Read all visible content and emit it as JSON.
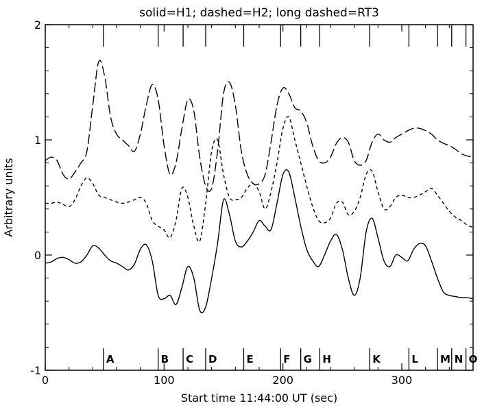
{
  "chart_data": {
    "type": "line",
    "title": "solid=H1; dashed=H2; long dashed=RT3",
    "xlabel": "Start time 11:44:00 UT (sec)",
    "ylabel": "Arbitrary units",
    "xlim": [
      0,
      360
    ],
    "ylim": [
      -1,
      2
    ],
    "xticks": [
      0,
      100,
      200,
      300
    ],
    "yticks": [
      -1,
      0,
      1,
      2
    ],
    "grid": false,
    "markers": [
      {
        "label": "A",
        "x": 49
      },
      {
        "label": "B",
        "x": 95
      },
      {
        "label": "C",
        "x": 116
      },
      {
        "label": "D",
        "x": 135
      },
      {
        "label": "E",
        "x": 167
      },
      {
        "label": "F",
        "x": 198
      },
      {
        "label": "G",
        "x": 215
      },
      {
        "label": "H",
        "x": 231
      },
      {
        "label": "K",
        "x": 273
      },
      {
        "label": "L",
        "x": 306
      },
      {
        "label": "M",
        "x": 330
      },
      {
        "label": "N",
        "x": 342
      },
      {
        "label": "O",
        "x": 354
      }
    ],
    "series": [
      {
        "name": "H1",
        "style": "solid",
        "x": [
          0,
          5,
          10,
          15,
          20,
          25,
          30,
          35,
          40,
          45,
          50,
          55,
          60,
          65,
          70,
          75,
          80,
          85,
          90,
          95,
          100,
          105,
          110,
          115,
          120,
          125,
          130,
          135,
          140,
          145,
          150,
          155,
          160,
          165,
          170,
          175,
          180,
          185,
          190,
          195,
          200,
          205,
          210,
          215,
          220,
          225,
          230,
          235,
          240,
          245,
          250,
          255,
          260,
          265,
          270,
          275,
          280,
          285,
          290,
          295,
          300,
          305,
          310,
          315,
          320,
          325,
          330,
          335,
          340,
          345,
          350,
          355,
          360
        ],
        "y": [
          -0.07,
          -0.06,
          -0.03,
          -0.02,
          -0.04,
          -0.07,
          -0.06,
          0.0,
          0.08,
          0.06,
          0.0,
          -0.05,
          -0.07,
          -0.1,
          -0.13,
          -0.08,
          0.05,
          0.09,
          -0.05,
          -0.35,
          -0.38,
          -0.35,
          -0.43,
          -0.28,
          -0.1,
          -0.2,
          -0.48,
          -0.45,
          -0.2,
          0.1,
          0.48,
          0.35,
          0.12,
          0.07,
          0.12,
          0.2,
          0.3,
          0.25,
          0.22,
          0.45,
          0.7,
          0.72,
          0.5,
          0.25,
          0.05,
          -0.05,
          -0.1,
          0.0,
          0.12,
          0.18,
          0.05,
          -0.2,
          -0.35,
          -0.2,
          0.2,
          0.32,
          0.15,
          -0.05,
          -0.1,
          0.0,
          -0.02,
          -0.05,
          0.05,
          0.1,
          0.08,
          -0.05,
          -0.2,
          -0.32,
          -0.35,
          -0.36,
          -0.37,
          -0.37,
          -0.38
        ]
      },
      {
        "name": "H2",
        "style": "dashed",
        "x": [
          0,
          5,
          10,
          15,
          20,
          25,
          30,
          35,
          40,
          45,
          50,
          55,
          60,
          65,
          70,
          75,
          80,
          85,
          90,
          95,
          100,
          105,
          110,
          115,
          120,
          125,
          130,
          135,
          140,
          145,
          150,
          155,
          160,
          165,
          170,
          175,
          180,
          185,
          190,
          195,
          200,
          205,
          210,
          215,
          220,
          225,
          230,
          235,
          240,
          245,
          250,
          255,
          260,
          265,
          270,
          275,
          280,
          285,
          290,
          295,
          300,
          305,
          310,
          315,
          320,
          325,
          330,
          335,
          340,
          345,
          350,
          355,
          360
        ],
        "y": [
          0.45,
          0.45,
          0.46,
          0.44,
          0.42,
          0.48,
          0.6,
          0.67,
          0.62,
          0.52,
          0.5,
          0.48,
          0.46,
          0.45,
          0.46,
          0.48,
          0.5,
          0.45,
          0.3,
          0.25,
          0.22,
          0.15,
          0.3,
          0.58,
          0.5,
          0.25,
          0.12,
          0.45,
          0.9,
          1.0,
          0.7,
          0.5,
          0.48,
          0.5,
          0.58,
          0.62,
          0.55,
          0.4,
          0.55,
          0.8,
          1.1,
          1.2,
          1.0,
          0.8,
          0.6,
          0.42,
          0.3,
          0.28,
          0.32,
          0.45,
          0.46,
          0.35,
          0.38,
          0.5,
          0.7,
          0.73,
          0.55,
          0.4,
          0.42,
          0.5,
          0.52,
          0.5,
          0.5,
          0.52,
          0.55,
          0.58,
          0.52,
          0.45,
          0.38,
          0.33,
          0.3,
          0.26,
          0.24
        ]
      },
      {
        "name": "RT3",
        "style": "long dashed",
        "x": [
          0,
          5,
          10,
          15,
          20,
          25,
          30,
          35,
          40,
          45,
          50,
          55,
          60,
          65,
          70,
          75,
          80,
          85,
          90,
          95,
          100,
          105,
          110,
          115,
          120,
          125,
          130,
          135,
          140,
          145,
          150,
          155,
          160,
          165,
          170,
          175,
          180,
          185,
          190,
          195,
          200,
          205,
          210,
          215,
          220,
          225,
          230,
          235,
          240,
          245,
          250,
          255,
          260,
          265,
          270,
          275,
          280,
          285,
          290,
          295,
          300,
          305,
          310,
          315,
          320,
          325,
          330,
          335,
          340,
          345,
          350,
          355,
          360
        ],
        "y": [
          0.82,
          0.85,
          0.82,
          0.7,
          0.66,
          0.72,
          0.8,
          0.9,
          1.3,
          1.68,
          1.55,
          1.2,
          1.05,
          1.0,
          0.95,
          0.9,
          1.05,
          1.3,
          1.48,
          1.35,
          0.95,
          0.7,
          0.8,
          1.1,
          1.35,
          1.25,
          0.85,
          0.6,
          0.58,
          0.9,
          1.4,
          1.5,
          1.3,
          0.9,
          0.7,
          0.62,
          0.62,
          0.7,
          0.98,
          1.3,
          1.45,
          1.4,
          1.28,
          1.25,
          1.15,
          0.95,
          0.82,
          0.8,
          0.85,
          0.97,
          1.02,
          0.98,
          0.82,
          0.78,
          0.82,
          0.98,
          1.05,
          1.0,
          0.98,
          1.02,
          1.05,
          1.08,
          1.1,
          1.1,
          1.08,
          1.05,
          1.0,
          0.97,
          0.95,
          0.92,
          0.88,
          0.86,
          0.85
        ]
      }
    ]
  }
}
